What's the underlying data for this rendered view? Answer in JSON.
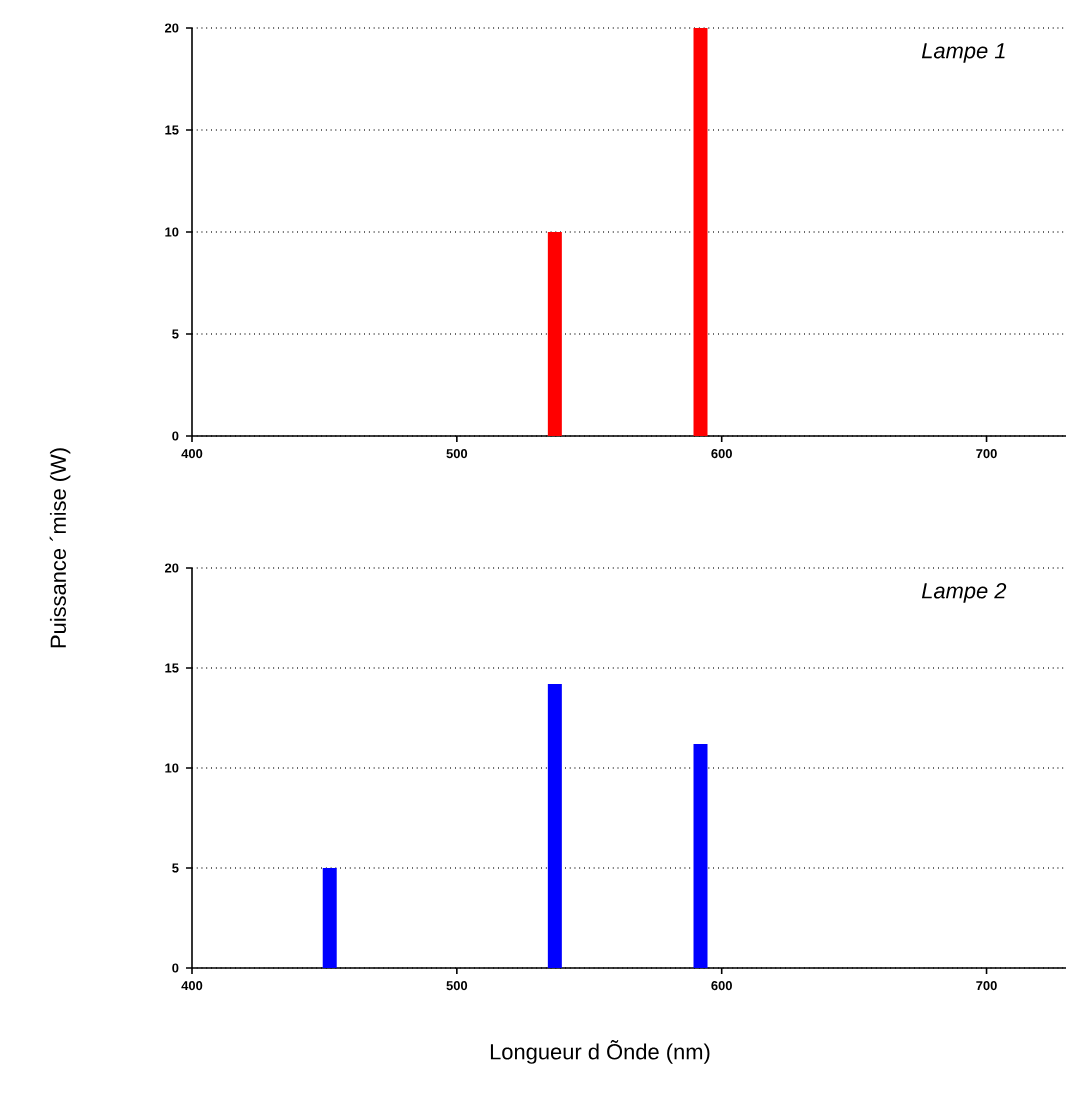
{
  "chart_data": [
    {
      "type": "bar",
      "title": "Lampe 1",
      "ylabel": "Puissance ´mise (W)",
      "x": [
        537,
        592
      ],
      "values": [
        10,
        20
      ],
      "color": "#ff0000",
      "xlim": [
        400,
        730
      ],
      "xticks": [
        400,
        500,
        600,
        700
      ],
      "ylim": [
        0,
        20
      ],
      "yticks": [
        0,
        5,
        10,
        15,
        20
      ],
      "grid": "y"
    },
    {
      "type": "bar",
      "title": "Lampe 2",
      "xlabel": "Longueur d Õnde (nm)",
      "x": [
        452,
        537,
        592
      ],
      "values": [
        5,
        14.2,
        11.2
      ],
      "color": "#0000ff",
      "xlim": [
        400,
        730
      ],
      "xticks": [
        400,
        500,
        600,
        700
      ],
      "ylim": [
        0,
        20
      ],
      "yticks": [
        0,
        5,
        10,
        15,
        20
      ],
      "grid": "y"
    }
  ]
}
